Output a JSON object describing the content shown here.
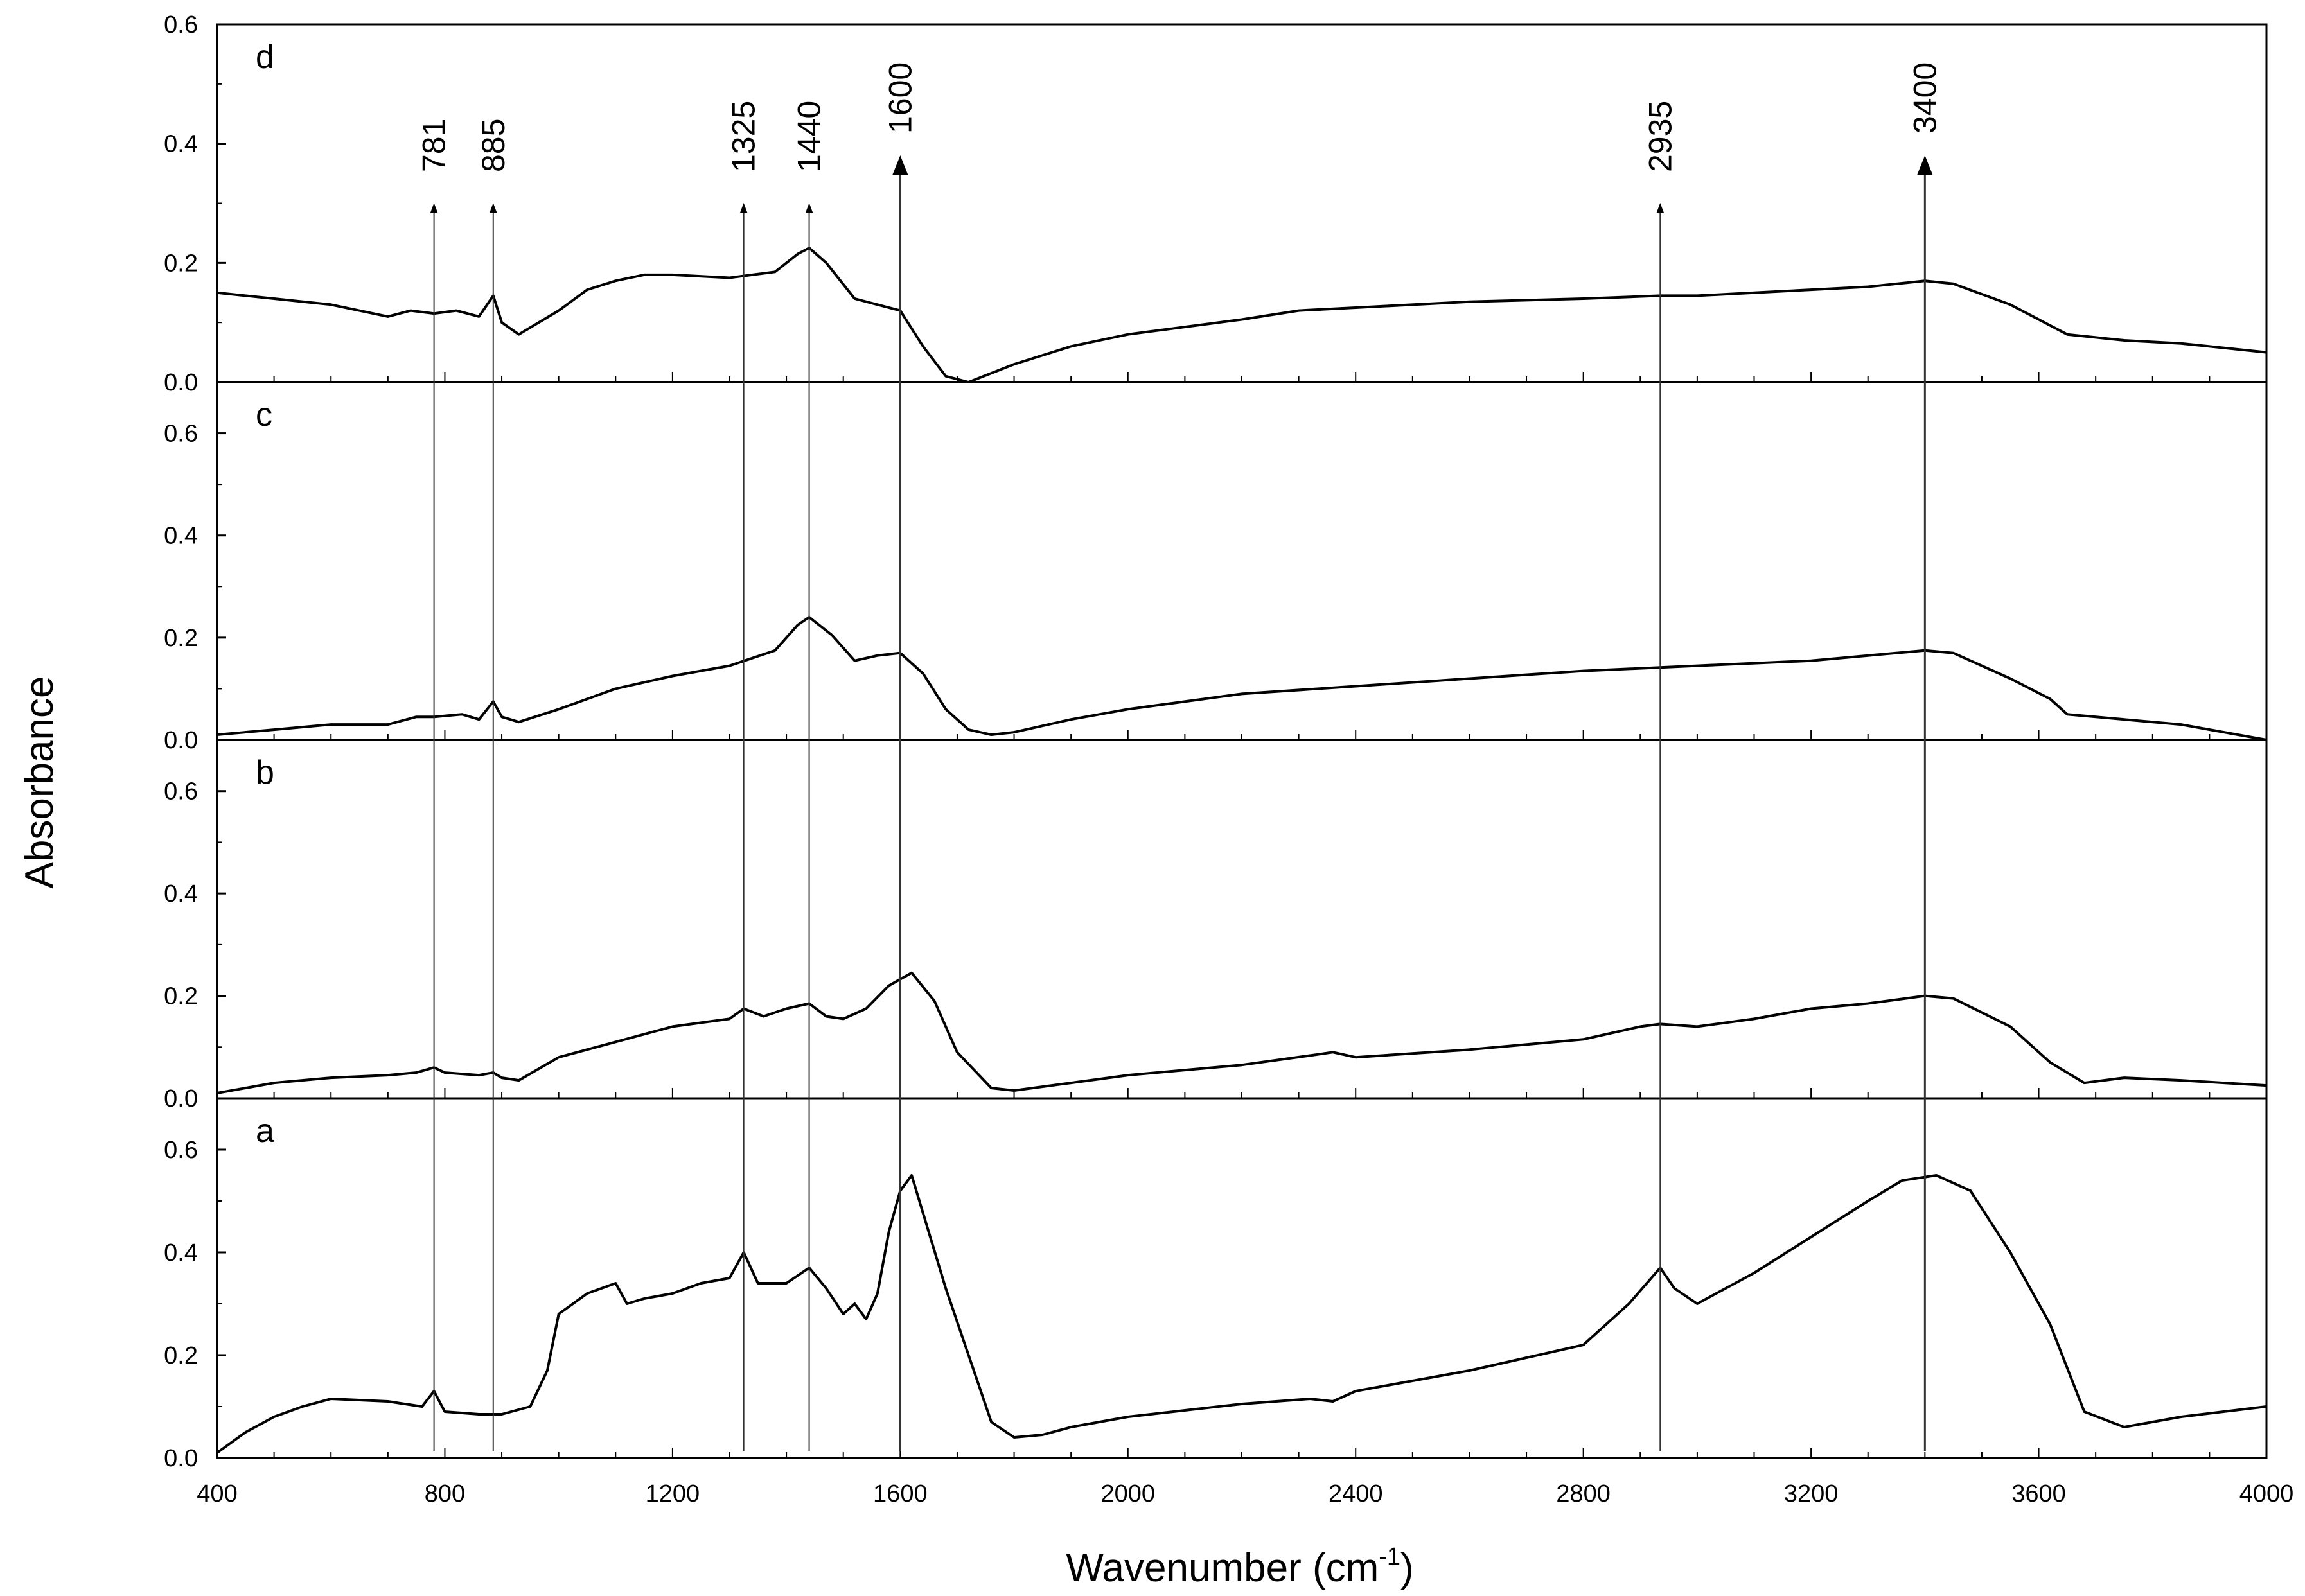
{
  "chart_data": {
    "type": "line",
    "title": "",
    "xlabel": "Wavenumber (cm",
    "xlabel_superscript": "-1",
    "xlabel_suffix": ")",
    "ylabel": "Absorbance",
    "xlim": [
      400,
      4000
    ],
    "x_ticks": [
      "400",
      "800",
      "1200",
      "1600",
      "2000",
      "2400",
      "2800",
      "3200",
      "3600",
      "4000"
    ],
    "x_tick_values": [
      400,
      800,
      1200,
      1600,
      2000,
      2400,
      2800,
      3200,
      3600,
      4000
    ],
    "panels": [
      {
        "name": "d",
        "ylim": [
          0,
          0.6
        ],
        "y_ticks": [
          "0.0",
          "0.2",
          "0.4",
          "0.6"
        ],
        "x": [
          400,
          500,
          600,
          700,
          740,
          781,
          820,
          860,
          885,
          900,
          930,
          1000,
          1050,
          1100,
          1150,
          1200,
          1300,
          1380,
          1420,
          1440,
          1470,
          1520,
          1560,
          1600,
          1640,
          1680,
          1720,
          1800,
          1900,
          2000,
          2200,
          2300,
          2400,
          2600,
          2800,
          2935,
          3000,
          3100,
          3200,
          3300,
          3400,
          3450,
          3550,
          3650,
          3750,
          3850,
          4000
        ],
        "y": [
          0.15,
          0.14,
          0.13,
          0.11,
          0.12,
          0.115,
          0.12,
          0.11,
          0.145,
          0.1,
          0.08,
          0.12,
          0.155,
          0.17,
          0.18,
          0.18,
          0.175,
          0.185,
          0.215,
          0.225,
          0.2,
          0.14,
          0.13,
          0.12,
          0.06,
          0.01,
          0.0,
          0.03,
          0.06,
          0.08,
          0.105,
          0.12,
          0.125,
          0.135,
          0.14,
          0.145,
          0.145,
          0.15,
          0.155,
          0.16,
          0.17,
          0.165,
          0.13,
          0.08,
          0.07,
          0.065,
          0.05
        ]
      },
      {
        "name": "c",
        "ylim": [
          0,
          0.7
        ],
        "y_ticks": [
          "0.0",
          "0.2",
          "0.4",
          "0.6"
        ],
        "x": [
          400,
          500,
          600,
          700,
          750,
          781,
          830,
          860,
          885,
          900,
          930,
          1000,
          1100,
          1200,
          1300,
          1380,
          1420,
          1440,
          1480,
          1520,
          1560,
          1600,
          1640,
          1680,
          1720,
          1760,
          1800,
          1900,
          2000,
          2200,
          2400,
          2600,
          2800,
          3000,
          3200,
          3300,
          3400,
          3450,
          3550,
          3620,
          3650,
          3750,
          3850,
          4000
        ],
        "y": [
          0.01,
          0.02,
          0.03,
          0.03,
          0.045,
          0.045,
          0.05,
          0.04,
          0.075,
          0.045,
          0.035,
          0.06,
          0.1,
          0.125,
          0.145,
          0.175,
          0.225,
          0.24,
          0.205,
          0.155,
          0.165,
          0.17,
          0.13,
          0.06,
          0.02,
          0.01,
          0.015,
          0.04,
          0.06,
          0.09,
          0.105,
          0.12,
          0.135,
          0.145,
          0.155,
          0.165,
          0.175,
          0.17,
          0.12,
          0.08,
          0.05,
          0.04,
          0.03,
          0.0
        ]
      },
      {
        "name": "b",
        "ylim": [
          0,
          0.7
        ],
        "y_ticks": [
          "0.0",
          "0.2",
          "0.4",
          "0.6"
        ],
        "x": [
          400,
          500,
          600,
          700,
          750,
          781,
          800,
          860,
          885,
          900,
          930,
          1000,
          1100,
          1200,
          1300,
          1325,
          1360,
          1400,
          1440,
          1470,
          1500,
          1540,
          1580,
          1620,
          1660,
          1700,
          1760,
          1800,
          1900,
          2000,
          2200,
          2330,
          2360,
          2400,
          2600,
          2800,
          2900,
          2935,
          3000,
          3100,
          3200,
          3300,
          3400,
          3450,
          3550,
          3620,
          3680,
          3750,
          3850,
          4000
        ],
        "y": [
          0.01,
          0.03,
          0.04,
          0.045,
          0.05,
          0.06,
          0.05,
          0.045,
          0.05,
          0.04,
          0.035,
          0.08,
          0.11,
          0.14,
          0.155,
          0.175,
          0.16,
          0.175,
          0.185,
          0.16,
          0.155,
          0.175,
          0.22,
          0.245,
          0.19,
          0.09,
          0.02,
          0.015,
          0.03,
          0.045,
          0.065,
          0.085,
          0.09,
          0.08,
          0.095,
          0.115,
          0.14,
          0.145,
          0.14,
          0.155,
          0.175,
          0.185,
          0.2,
          0.195,
          0.14,
          0.07,
          0.03,
          0.04,
          0.035,
          0.025
        ]
      },
      {
        "name": "a",
        "ylim": [
          0,
          0.7
        ],
        "y_ticks": [
          "0.0",
          "0.2",
          "0.4",
          "0.6"
        ],
        "x": [
          400,
          450,
          500,
          550,
          600,
          700,
          760,
          781,
          800,
          860,
          900,
          950,
          980,
          1000,
          1050,
          1100,
          1120,
          1150,
          1200,
          1250,
          1300,
          1325,
          1350,
          1400,
          1440,
          1470,
          1500,
          1520,
          1540,
          1560,
          1580,
          1600,
          1620,
          1650,
          1680,
          1720,
          1760,
          1800,
          1850,
          1900,
          2000,
          2200,
          2320,
          2360,
          2400,
          2600,
          2800,
          2880,
          2935,
          2960,
          3000,
          3100,
          3200,
          3300,
          3360,
          3420,
          3480,
          3550,
          3620,
          3680,
          3750,
          3850,
          4000
        ],
        "y": [
          0.01,
          0.05,
          0.08,
          0.1,
          0.115,
          0.11,
          0.1,
          0.13,
          0.09,
          0.085,
          0.085,
          0.1,
          0.17,
          0.28,
          0.32,
          0.34,
          0.3,
          0.31,
          0.32,
          0.34,
          0.35,
          0.4,
          0.34,
          0.34,
          0.37,
          0.33,
          0.28,
          0.3,
          0.27,
          0.32,
          0.44,
          0.52,
          0.55,
          0.44,
          0.33,
          0.2,
          0.07,
          0.04,
          0.045,
          0.06,
          0.08,
          0.105,
          0.115,
          0.11,
          0.13,
          0.17,
          0.22,
          0.3,
          0.37,
          0.33,
          0.3,
          0.36,
          0.43,
          0.5,
          0.54,
          0.55,
          0.52,
          0.4,
          0.26,
          0.09,
          0.06,
          0.08,
          0.1
        ]
      }
    ],
    "peak_annotations": [
      {
        "label": "781",
        "x": 781,
        "arrow": "small"
      },
      {
        "label": "885",
        "x": 885,
        "arrow": "small"
      },
      {
        "label": "1325",
        "x": 1325,
        "arrow": "small"
      },
      {
        "label": "1440",
        "x": 1440,
        "arrow": "small"
      },
      {
        "label": "1600",
        "x": 1600,
        "arrow": "large"
      },
      {
        "label": "2935",
        "x": 2935,
        "arrow": "small"
      },
      {
        "label": "3400",
        "x": 3400,
        "arrow": "large"
      }
    ]
  }
}
